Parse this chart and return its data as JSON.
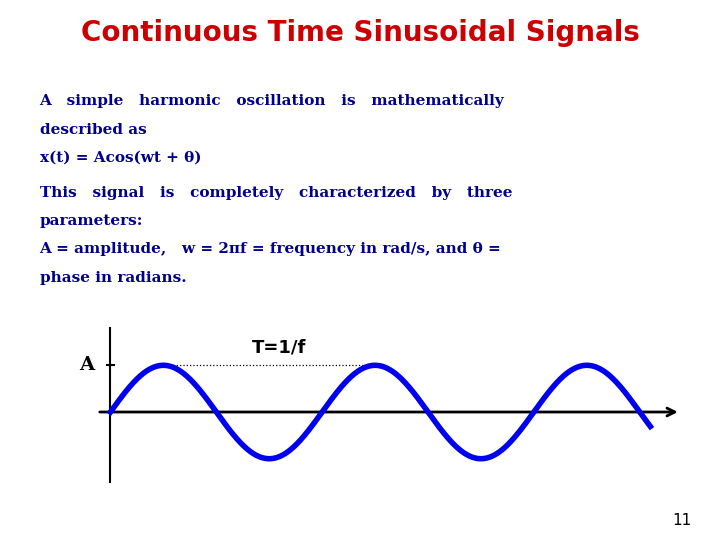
{
  "title": "Continuous Time Sinusoidal Signals",
  "title_color": "#CC0000",
  "title_fontsize": 20,
  "bg_color": "#FFFFFF",
  "text_color": "#00008B",
  "text_block1_line1": "A   simple   harmonic   oscillation   is   mathematically",
  "text_block1_line2": "described as",
  "text_block1_line3": "x(t) = Acos(wt + θ)",
  "text_block2_line1": "This   signal   is   completely   characterized   by   three",
  "text_block2_line2": "parameters:",
  "text_block2_line3": "A = amplitude,   w = 2πf = frequency in rad/s, and θ =",
  "text_block2_line4": "phase in radians.",
  "sine_color": "#0000EE",
  "sine_linewidth": 4.0,
  "axis_color": "#000000",
  "label_A": "A",
  "label_T": "T=1/f",
  "page_number": "11",
  "num_periods": 2.55,
  "wave_xleft": 0.13,
  "wave_xright": 0.93,
  "wave_ytop": 0.46,
  "wave_ybottom": 0.12
}
